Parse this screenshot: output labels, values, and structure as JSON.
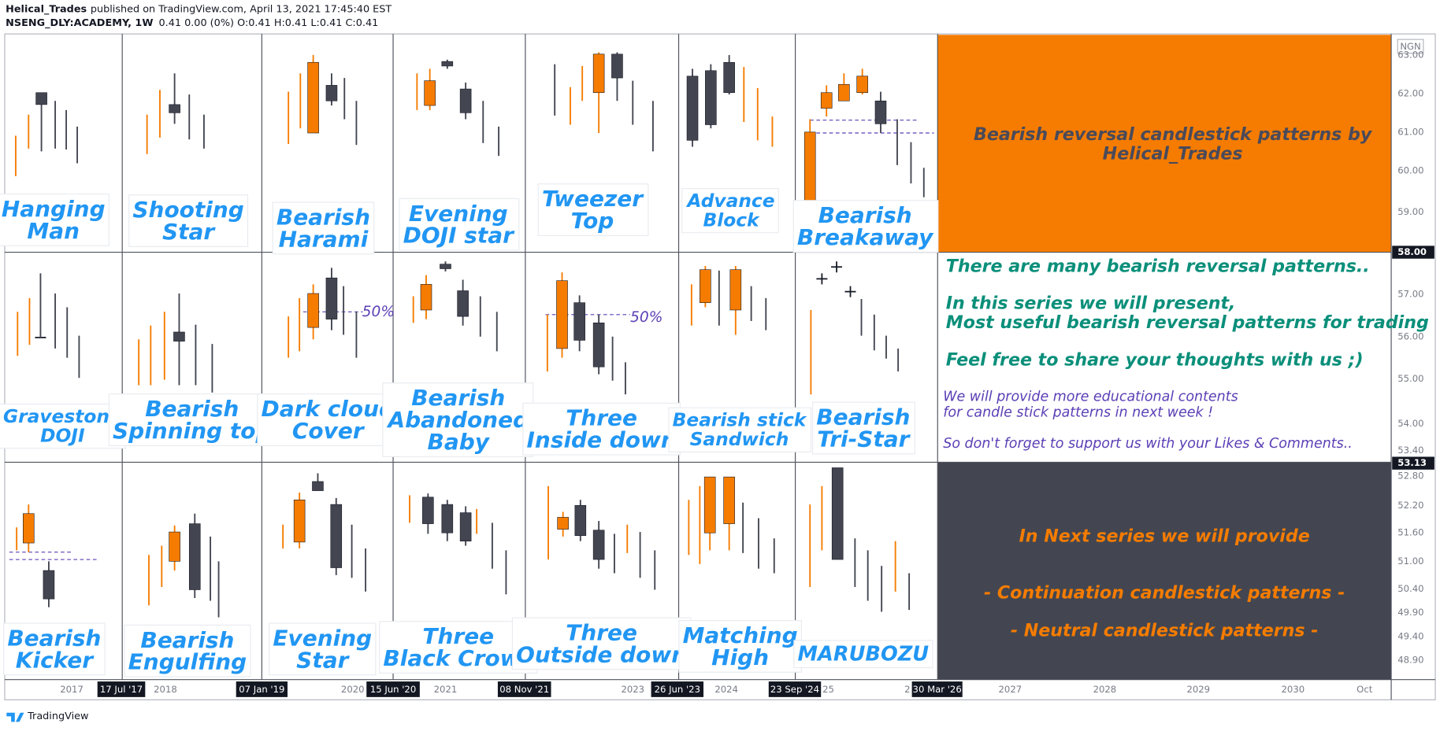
{
  "header": {
    "author": "Helical_Trades",
    "published": "published on TradingView.com, April 13, 2021 17:45:40 EST",
    "symbol": "NSENG_DLY:ACADEMY, 1W",
    "quote": "0.41 0.00 (0%) O:0.41 H:0.41 L:0.41 C:0.41"
  },
  "patterns": [
    {
      "lines": [
        "Hanging",
        "Man"
      ]
    },
    {
      "lines": [
        "Shooting",
        "Star"
      ]
    },
    {
      "lines": [
        "Bearish",
        "Harami"
      ]
    },
    {
      "lines": [
        "Evening",
        "DOJI star"
      ]
    },
    {
      "lines": [
        "Tweezer",
        "Top"
      ]
    },
    {
      "lines": [
        "Advance",
        "Block"
      ]
    },
    {
      "lines": [
        "Bearish",
        "Breakaway"
      ]
    },
    {
      "lines": [
        "Gravestone",
        "DOJI"
      ]
    },
    {
      "lines": [
        "Bearish",
        "Spinning top"
      ]
    },
    {
      "lines": [
        "Dark cloud",
        "Cover"
      ]
    },
    {
      "lines": [
        "Bearish",
        "Abandoned",
        "Baby"
      ]
    },
    {
      "lines": [
        "Three",
        "Inside down"
      ]
    },
    {
      "lines": [
        "Bearish stick",
        "Sandwich"
      ]
    },
    {
      "lines": [
        "Bearish",
        "Tri-Star"
      ]
    },
    {
      "lines": [
        "Bearish",
        "Kicker"
      ]
    },
    {
      "lines": [
        "Bearish",
        "Engulfing"
      ]
    },
    {
      "lines": [
        "Evening",
        "Star"
      ]
    },
    {
      "lines": [
        "Three",
        "Black Crows"
      ]
    },
    {
      "lines": [
        "Three",
        "Outside down"
      ]
    },
    {
      "lines": [
        "Matching",
        "High"
      ]
    },
    {
      "lines": [
        "MARUBOZU"
      ]
    }
  ],
  "annotations": [
    "50%",
    "50%"
  ],
  "title_panel": {
    "lines": [
      "Bearish reversal candlestick patterns by",
      "Helical_Trades"
    ]
  },
  "info_panel": {
    "teal": [
      "There are many bearish reversal patterns..",
      "In this series we will present,",
      "Most useful bearish reversal patterns for trading",
      "Feel free to share your thoughts with us ;)"
    ],
    "purple": [
      "We will provide more educational contents",
      "for candle stick patterns in next week !",
      "So don't forget to support us with your Likes & Comments.."
    ]
  },
  "next_panel": {
    "lines": [
      "In Next series we will provide",
      "- Continuation candlestick patterns -",
      "- Neutral candlestick patterns -"
    ]
  },
  "price_axis": {
    "currency": "NGN",
    "labels": [
      "63.00",
      "62.00",
      "61.00",
      "60.00",
      "59.00",
      "58.00",
      "57.00",
      "56.00",
      "55.00",
      "54.00",
      "53.40",
      "53.13",
      "52.80",
      "52.20",
      "51.60",
      "51.00",
      "50.40",
      "49.90",
      "49.40",
      "48.90"
    ]
  },
  "time_axis": {
    "labels": [
      "2017",
      "2018",
      "2020",
      "2021",
      "2023",
      "2024",
      "25",
      "2",
      "2027",
      "2028",
      "2029",
      "2030",
      "Oct"
    ],
    "date_tags": [
      "17 Jul '17",
      "07 Jan '19",
      "15 Jun '20",
      "08 Nov '21",
      "26 Jun '23",
      "23 Sep '24",
      "30 Mar '26"
    ]
  },
  "footer": {
    "brand": "TradingView"
  }
}
